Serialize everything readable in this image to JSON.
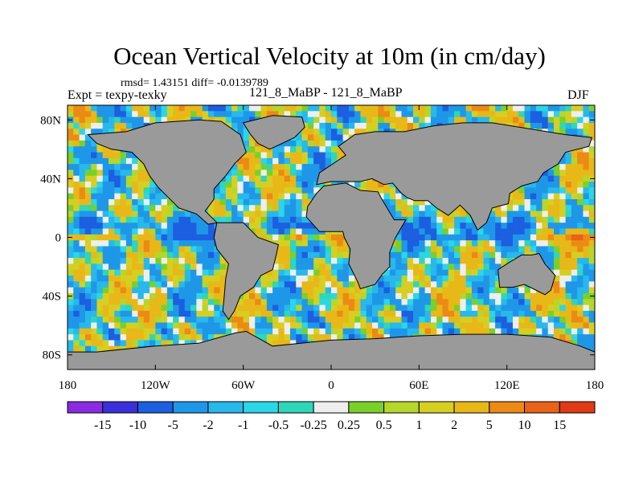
{
  "header": {
    "title": "Ocean Vertical Velocity at 10m (in cm/day)",
    "stats_line": "rmsd= 1.43151  diff= -0.0139789",
    "left_label": "Expt = texpy-texky",
    "center_label": "121_8_MaBP - 121_8_MaBP",
    "right_label": "DJF"
  },
  "chart_data": {
    "type": "heatmap",
    "title": "Ocean Vertical Velocity at 10m (in cm/day)",
    "subtitle": "rmsd= 1.43151  diff= -0.0139789",
    "x_axis": {
      "range": [
        -180,
        180
      ],
      "ticks": [
        -180,
        -120,
        -60,
        0,
        60,
        120,
        180
      ],
      "tick_labels": [
        "180",
        "120W",
        "60W",
        "0",
        "60E",
        "120E",
        "180"
      ]
    },
    "y_axis": {
      "range": [
        -90,
        90
      ],
      "ticks": [
        80,
        40,
        0,
        -40,
        -80
      ],
      "tick_labels": [
        "80N",
        "40N",
        "0",
        "40S",
        "80S"
      ]
    },
    "colorbar": {
      "levels": [
        "-15",
        "-10",
        "-5",
        "-2",
        "-1",
        "-0.5",
        "-0.25",
        "0.25",
        "0.5",
        "1",
        "2",
        "5",
        "10",
        "15"
      ],
      "colors": [
        "#8a2be2",
        "#3a2fd8",
        "#1c5fe0",
        "#1f97e8",
        "#28b8ec",
        "#2bd6e6",
        "#2fd6b8",
        "#eeeeee",
        "#7ad02a",
        "#b6d62b",
        "#d6cf22",
        "#e8b818",
        "#ec8a16",
        "#e8621a",
        "#e03a16"
      ]
    },
    "land_color": "#9a9a9a",
    "continents": [
      {
        "name": "north-america",
        "outline": [
          [
            -140,
            72
          ],
          [
            -120,
            78
          ],
          [
            -90,
            80
          ],
          [
            -75,
            79
          ],
          [
            -62,
            70
          ],
          [
            -58,
            58
          ],
          [
            -66,
            50
          ],
          [
            -72,
            42
          ],
          [
            -80,
            33
          ],
          [
            -80,
            26
          ],
          [
            -86,
            18
          ],
          [
            -78,
            10
          ],
          [
            -84,
            9
          ],
          [
            -92,
            16
          ],
          [
            -104,
            20
          ],
          [
            -112,
            28
          ],
          [
            -118,
            34
          ],
          [
            -124,
            42
          ],
          [
            -128,
            50
          ],
          [
            -136,
            58
          ],
          [
            -150,
            60
          ],
          [
            -160,
            64
          ],
          [
            -166,
            70
          ],
          [
            -140,
            72
          ]
        ]
      },
      {
        "name": "south-america",
        "outline": [
          [
            -78,
            10
          ],
          [
            -60,
            10
          ],
          [
            -50,
            0
          ],
          [
            -36,
            -5
          ],
          [
            -38,
            -14
          ],
          [
            -40,
            -22
          ],
          [
            -48,
            -26
          ],
          [
            -53,
            -34
          ],
          [
            -62,
            -40
          ],
          [
            -66,
            -50
          ],
          [
            -70,
            -56
          ],
          [
            -74,
            -50
          ],
          [
            -73,
            -40
          ],
          [
            -72,
            -28
          ],
          [
            -70,
            -18
          ],
          [
            -78,
            -8
          ],
          [
            -80,
            0
          ],
          [
            -78,
            10
          ]
        ]
      },
      {
        "name": "eurasia",
        "outline": [
          [
            -10,
            36
          ],
          [
            -8,
            44
          ],
          [
            -2,
            48
          ],
          [
            4,
            52
          ],
          [
            10,
            56
          ],
          [
            5,
            62
          ],
          [
            16,
            70
          ],
          [
            30,
            72
          ],
          [
            50,
            72
          ],
          [
            70,
            76
          ],
          [
            90,
            78
          ],
          [
            110,
            78
          ],
          [
            135,
            74
          ],
          [
            160,
            70
          ],
          [
            178,
            68
          ],
          [
            176,
            62
          ],
          [
            160,
            58
          ],
          [
            155,
            50
          ],
          [
            145,
            44
          ],
          [
            141,
            38
          ],
          [
            130,
            35
          ],
          [
            122,
            30
          ],
          [
            121,
            23
          ],
          [
            110,
            20
          ],
          [
            106,
            10
          ],
          [
            100,
            5
          ],
          [
            95,
            15
          ],
          [
            88,
            22
          ],
          [
            80,
            15
          ],
          [
            72,
            20
          ],
          [
            66,
            25
          ],
          [
            57,
            25
          ],
          [
            52,
            27
          ],
          [
            48,
            30
          ],
          [
            42,
            37
          ],
          [
            36,
            36
          ],
          [
            28,
            40
          ],
          [
            20,
            38
          ],
          [
            12,
            38
          ],
          [
            0,
            38
          ],
          [
            -10,
            36
          ]
        ]
      },
      {
        "name": "africa",
        "outline": [
          [
            -17,
            14
          ],
          [
            -16,
            21
          ],
          [
            -10,
            30
          ],
          [
            -5,
            35
          ],
          [
            10,
            37
          ],
          [
            20,
            32
          ],
          [
            32,
            31
          ],
          [
            34,
            27
          ],
          [
            43,
            12
          ],
          [
            51,
            12
          ],
          [
            44,
            0
          ],
          [
            40,
            -10
          ],
          [
            40,
            -20
          ],
          [
            35,
            -25
          ],
          [
            30,
            -32
          ],
          [
            20,
            -35
          ],
          [
            18,
            -30
          ],
          [
            12,
            -18
          ],
          [
            13,
            -8
          ],
          [
            9,
            0
          ],
          [
            8,
            4
          ],
          [
            -8,
            4
          ],
          [
            -17,
            14
          ]
        ]
      },
      {
        "name": "australia",
        "outline": [
          [
            114,
            -22
          ],
          [
            120,
            -18
          ],
          [
            130,
            -12
          ],
          [
            137,
            -12
          ],
          [
            142,
            -11
          ],
          [
            146,
            -18
          ],
          [
            153,
            -26
          ],
          [
            150,
            -36
          ],
          [
            146,
            -39
          ],
          [
            138,
            -35
          ],
          [
            132,
            -32
          ],
          [
            124,
            -34
          ],
          [
            115,
            -34
          ],
          [
            114,
            -22
          ]
        ]
      },
      {
        "name": "greenland",
        "outline": [
          [
            -60,
            78
          ],
          [
            -40,
            83
          ],
          [
            -20,
            82
          ],
          [
            -18,
            75
          ],
          [
            -25,
            68
          ],
          [
            -42,
            60
          ],
          [
            -50,
            64
          ],
          [
            -55,
            70
          ],
          [
            -60,
            78
          ]
        ]
      },
      {
        "name": "antarctica",
        "outline": [
          [
            -180,
            -90
          ],
          [
            -180,
            -78
          ],
          [
            -160,
            -78
          ],
          [
            -120,
            -74
          ],
          [
            -90,
            -72
          ],
          [
            -65,
            -65
          ],
          [
            -58,
            -64
          ],
          [
            -40,
            -74
          ],
          [
            -20,
            -72
          ],
          [
            0,
            -70
          ],
          [
            30,
            -69
          ],
          [
            60,
            -67
          ],
          [
            90,
            -66
          ],
          [
            120,
            -66
          ],
          [
            150,
            -68
          ],
          [
            170,
            -74
          ],
          [
            180,
            -78
          ],
          [
            180,
            -90
          ],
          [
            -180,
            -90
          ]
        ]
      }
    ]
  }
}
